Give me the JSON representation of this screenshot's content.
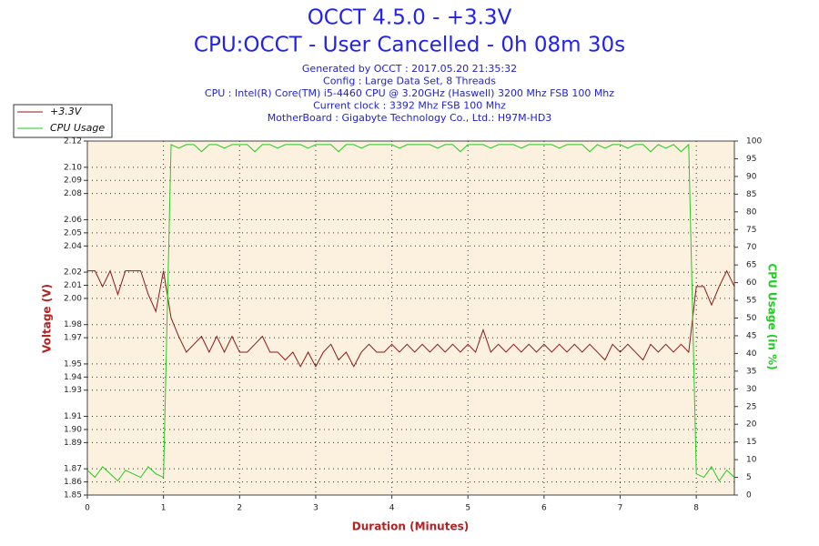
{
  "chart_data": {
    "type": "line",
    "title": "OCCT 4.5.0 - +3.3V",
    "subtitle": "CPU:OCCT - User Cancelled - 0h 08m 30s",
    "info_lines": [
      "Generated by OCCT : 2017.05.20 21:35:32",
      "Config : Large Data Set, 8 Threads",
      "CPU : Intel(R) Core(TM) i5-4460 CPU @ 3.20GHz (Haswell) 3200 Mhz FSB 100 Mhz",
      "Current clock : 3392 Mhz FSB 100 Mhz",
      "MotherBoard : Gigabyte Technology Co., Ltd.: H97M-HD3"
    ],
    "x_label": "Duration (Minutes)",
    "y_label": "Voltage (V)",
    "y2_label": "CPU Usage (in %)",
    "grid": true,
    "legend": "top-left",
    "xlim": [
      0,
      8.5
    ],
    "xticks": [
      0,
      1,
      2,
      3,
      4,
      5,
      6,
      7,
      8
    ],
    "ylim": [
      1.85,
      2.12
    ],
    "yticks": [
      1.85,
      1.86,
      1.87,
      1.89,
      {
        "value": 1.9,
        "label": "1.90"
      },
      1.91,
      1.93,
      1.94,
      1.95,
      1.97,
      1.98,
      {
        "value": 2,
        "label": "2.00"
      },
      2.01,
      2.02,
      2.04,
      2.05,
      2.06,
      2.08,
      2.09,
      {
        "value": 2.1,
        "label": "2.10"
      },
      2.12
    ],
    "y2lim": [
      0,
      100
    ],
    "y2ticks": [
      0,
      5,
      10,
      15,
      20,
      25,
      30,
      35,
      40,
      45,
      50,
      55,
      60,
      65,
      70,
      75,
      80,
      85,
      90,
      95,
      100
    ],
    "x": [
      0,
      0.1,
      0.2,
      0.3,
      0.4,
      0.5,
      0.6,
      0.7,
      0.8,
      0.9,
      1.0,
      1.1,
      1.2,
      1.3,
      1.4,
      1.5,
      1.6,
      1.7,
      1.8,
      1.9,
      2.0,
      2.1,
      2.2,
      2.3,
      2.4,
      2.5,
      2.6,
      2.7,
      2.8,
      2.9,
      3.0,
      3.1,
      3.2,
      3.3,
      3.4,
      3.5,
      3.6,
      3.7,
      3.8,
      3.9,
      4.0,
      4.1,
      4.2,
      4.3,
      4.4,
      4.5,
      4.6,
      4.7,
      4.8,
      4.9,
      5.0,
      5.1,
      5.2,
      5.3,
      5.4,
      5.5,
      5.6,
      5.7,
      5.8,
      5.9,
      6.0,
      6.1,
      6.2,
      6.3,
      6.4,
      6.5,
      6.6,
      6.7,
      6.8,
      6.9,
      7.0,
      7.1,
      7.2,
      7.3,
      7.4,
      7.5,
      7.6,
      7.7,
      7.8,
      7.9,
      8.0,
      8.1,
      8.2,
      8.3,
      8.4,
      8.5
    ],
    "series": [
      {
        "name": "+3.3V",
        "color": "#8b1a1a",
        "axis": "y",
        "values": [
          2.021,
          2.021,
          2.009,
          2.021,
          2.003,
          2.021,
          2.021,
          2.021,
          2.003,
          1.99,
          2.021,
          1.985,
          1.971,
          1.959,
          1.965,
          1.971,
          1.959,
          1.971,
          1.959,
          1.971,
          1.959,
          1.959,
          1.965,
          1.971,
          1.959,
          1.959,
          1.953,
          1.959,
          1.948,
          1.959,
          1.948,
          1.959,
          1.965,
          1.953,
          1.959,
          1.948,
          1.959,
          1.965,
          1.959,
          1.959,
          1.965,
          1.959,
          1.965,
          1.959,
          1.965,
          1.959,
          1.965,
          1.959,
          1.965,
          1.959,
          1.965,
          1.959,
          1.976,
          1.959,
          1.965,
          1.959,
          1.965,
          1.959,
          1.965,
          1.959,
          1.965,
          1.959,
          1.965,
          1.959,
          1.965,
          1.959,
          1.965,
          1.959,
          1.953,
          1.965,
          1.959,
          1.965,
          1.959,
          1.953,
          1.965,
          1.959,
          1.965,
          1.959,
          1.965,
          1.959,
          2.009,
          2.009,
          1.995,
          2.009,
          2.021,
          2.009
        ]
      },
      {
        "name": "CPU Usage",
        "color": "#22cc22",
        "axis": "y2",
        "values": [
          7,
          5,
          8,
          6,
          4,
          7,
          6,
          5,
          8,
          6,
          5,
          99,
          98,
          99,
          99,
          97,
          99,
          99,
          98,
          99,
          99,
          99,
          97,
          99,
          99,
          98,
          99,
          99,
          99,
          98,
          99,
          99,
          99,
          97,
          99,
          99,
          98,
          99,
          99,
          99,
          99,
          98,
          99,
          99,
          99,
          99,
          98,
          99,
          99,
          97,
          99,
          99,
          99,
          98,
          99,
          99,
          99,
          98,
          99,
          99,
          99,
          99,
          98,
          99,
          99,
          99,
          97,
          99,
          98,
          99,
          99,
          98,
          99,
          99,
          97,
          99,
          98,
          99,
          97,
          99,
          6,
          5,
          8,
          4,
          7,
          5
        ]
      }
    ]
  }
}
